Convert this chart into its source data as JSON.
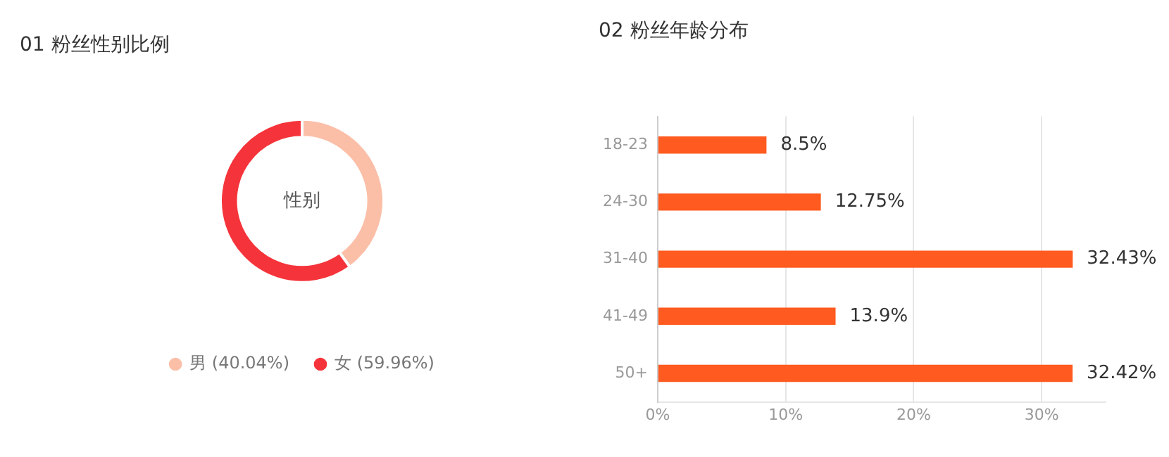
{
  "chart_data": [
    {
      "type": "donut",
      "title": "01 粉丝性别比例",
      "categories": [
        "男",
        "女"
      ],
      "values": [
        40.04,
        59.96
      ],
      "value_labels": [
        "(40.04%)",
        "(59.96%)"
      ],
      "colors": [
        "#fbbfa8",
        "#f5333a"
      ],
      "legend": "bottom",
      "annotations": [
        "性别"
      ]
    },
    {
      "type": "bar",
      "orientation": "horizontal",
      "title": "02 粉丝年龄分布",
      "categories": [
        "18-23",
        "24-30",
        "31-40",
        "41-49",
        "50+"
      ],
      "values": [
        8.5,
        12.75,
        32.43,
        13.9,
        32.42
      ],
      "value_labels": [
        "8.5%",
        "12.75%",
        "32.43%",
        "13.9%",
        "32.42%"
      ],
      "color": "#ff5a1f",
      "xlim": [
        0,
        35
      ],
      "xticks": [
        {
          "value": 0,
          "label": "0%"
        },
        {
          "value": 10,
          "label": "10%"
        },
        {
          "value": 20,
          "label": "20%"
        },
        {
          "value": 30,
          "label": "30%"
        }
      ],
      "grid": "x",
      "legend": false
    }
  ]
}
